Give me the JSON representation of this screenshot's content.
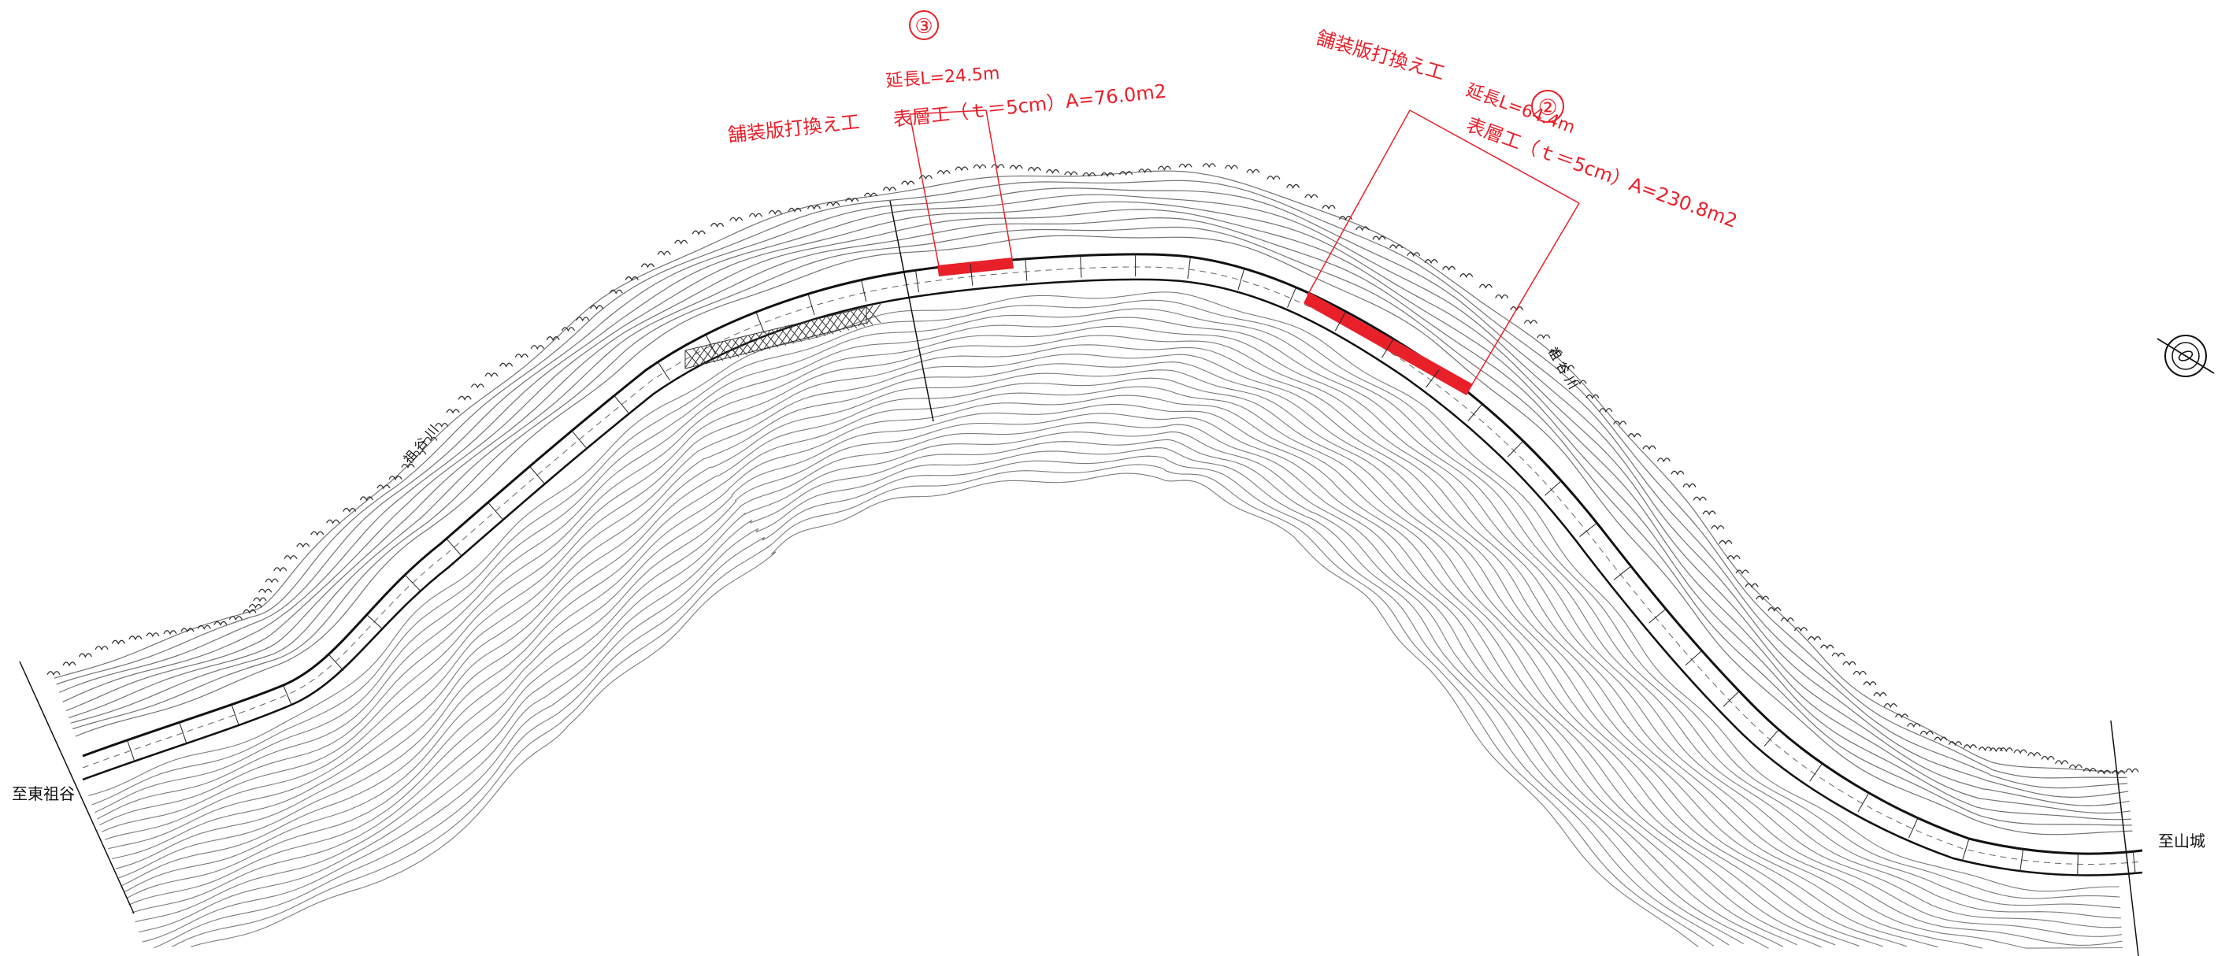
{
  "sheet": {
    "destination_left": "至東祖谷",
    "destination_right": "至山城",
    "river_label_left": "祖 谷 川",
    "river_label_right": "祖 谷 川"
  },
  "work_sections": [
    {
      "number": "③",
      "length_text": "延長L=24.5m",
      "work_type": "舗装版打換え工",
      "surface_text": "表層工（ｔ＝5cm）A=76.0m2",
      "color": "#e8202a"
    },
    {
      "number": "②",
      "length_text": "延長L=64.4m",
      "work_type": "舗装版打換え工",
      "surface_text": "表層工（ｔ＝5cm）A=230.8m2",
      "color": "#e8202a"
    }
  ],
  "map_features": {
    "north_arrow": "north-arrow-icon",
    "road_color": "#111111",
    "terrain_color": "#333333",
    "highlight_color": "#e8202a"
  }
}
